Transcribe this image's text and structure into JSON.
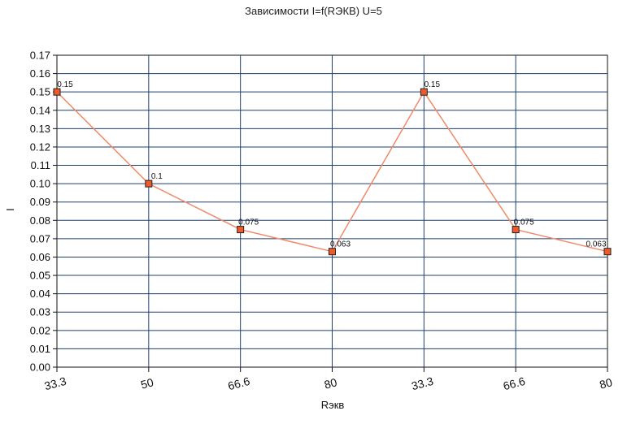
{
  "chart_data": {
    "type": "line",
    "title": "Зависимости I=f(RЭКВ) U=5",
    "xlabel": "Rэкв",
    "ylabel": "I",
    "categories": [
      "33.3",
      "50",
      "66.6",
      "80",
      "33.3",
      "66.6",
      "80"
    ],
    "series": [
      {
        "values": [
          0.15,
          0.1,
          0.075,
          0.063,
          0.15,
          0.075,
          0.063
        ],
        "labels": [
          "0.15",
          "0.1",
          "0.075",
          "0.063",
          "0.15",
          "0.075",
          "0.063"
        ]
      }
    ],
    "ylim": [
      0,
      0.17
    ],
    "yticks": [
      "0.00",
      "0.01",
      "0.02",
      "0.03",
      "0.04",
      "0.05",
      "0.06",
      "0.07",
      "0.08",
      "0.09",
      "0.10",
      "0.11",
      "0.12",
      "0.13",
      "0.14",
      "0.15",
      "0.16",
      "0.17"
    ],
    "grid": true,
    "colors": {
      "line": "#f08a6a",
      "marker_fill": "#f05a2a",
      "marker_stroke": "#222222",
      "grid": "#1f3f6e"
    }
  }
}
